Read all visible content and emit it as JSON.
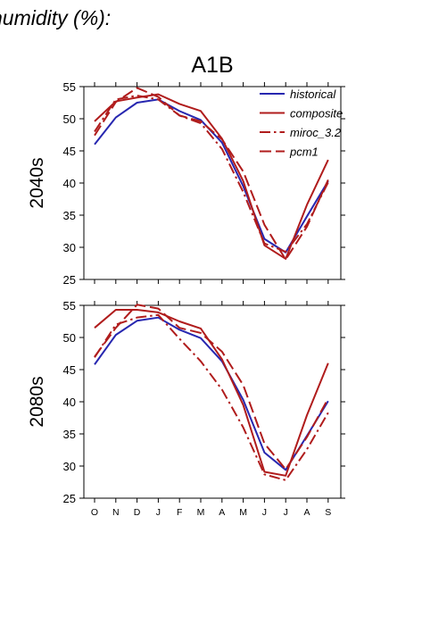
{
  "header_text": "humidity (%):",
  "colors": {
    "historical": "#2727b0",
    "composite": "#b01c1c",
    "miroc_3.2": "#b01c1c",
    "pcm1": "#b01c1c"
  },
  "chart_data": [
    {
      "type": "line",
      "title": "A1B",
      "row_label": "2040s",
      "ylim": [
        25,
        55
      ],
      "yticks": [
        25,
        30,
        35,
        40,
        45,
        50,
        55
      ],
      "categories": [
        "O",
        "N",
        "D",
        "J",
        "F",
        "M",
        "A",
        "M",
        "J",
        "J",
        "A",
        "S"
      ],
      "legend": {
        "placement": "top-right",
        "entries": [
          "historical",
          "composite",
          "miroc_3.2",
          "pcm1"
        ]
      },
      "series": [
        {
          "name": "historical",
          "style": "solid",
          "values": [
            46,
            50.2,
            52.5,
            53,
            51.2,
            49.8,
            46.3,
            39.5,
            31.3,
            29.2,
            34.8,
            40.3
          ]
        },
        {
          "name": "composite",
          "style": "solid",
          "values": [
            49.6,
            52.7,
            53.3,
            53.8,
            52.3,
            51.2,
            46.9,
            40.3,
            30.3,
            28.2,
            36.6,
            43.6
          ]
        },
        {
          "name": "miroc_3.2",
          "style": "dashdot",
          "values": [
            48,
            53,
            53.6,
            53,
            50.5,
            49.3,
            45.3,
            38.6,
            30.6,
            29.3,
            33.6,
            40.1
          ]
        },
        {
          "name": "pcm1",
          "style": "dashed",
          "values": [
            47.4,
            52.6,
            54.8,
            53.4,
            50.5,
            49.6,
            46.8,
            41.8,
            33.5,
            28.1,
            33.2,
            40.5
          ]
        }
      ]
    },
    {
      "type": "line",
      "row_label": "2080s",
      "ylim": [
        25,
        55
      ],
      "yticks": [
        25,
        30,
        35,
        40,
        45,
        50,
        55
      ],
      "categories": [
        "O",
        "N",
        "D",
        "J",
        "F",
        "M",
        "A",
        "M",
        "J",
        "J",
        "A",
        "S"
      ],
      "series": [
        {
          "name": "historical",
          "style": "solid",
          "values": [
            45.8,
            50.4,
            52.6,
            53.1,
            51.2,
            49.9,
            46.3,
            40.3,
            32.1,
            29.4,
            34.7,
            40.1
          ]
        },
        {
          "name": "composite",
          "style": "solid",
          "values": [
            51.5,
            54.3,
            54.3,
            53.9,
            52.5,
            51.4,
            46.6,
            39.5,
            29.1,
            28.5,
            37.9,
            46
          ]
        },
        {
          "name": "miroc_3.2",
          "style": "dashdot",
          "values": [
            46.9,
            52,
            53.1,
            53.5,
            49.8,
            46.3,
            41.9,
            36,
            28.7,
            27.8,
            32.6,
            38.3
          ]
        },
        {
          "name": "pcm1",
          "style": "dashed",
          "values": [
            47,
            51.5,
            55.1,
            54.5,
            51.5,
            50.7,
            47.8,
            42.6,
            33.5,
            29.5,
            34.5,
            40.5
          ]
        }
      ]
    }
  ]
}
